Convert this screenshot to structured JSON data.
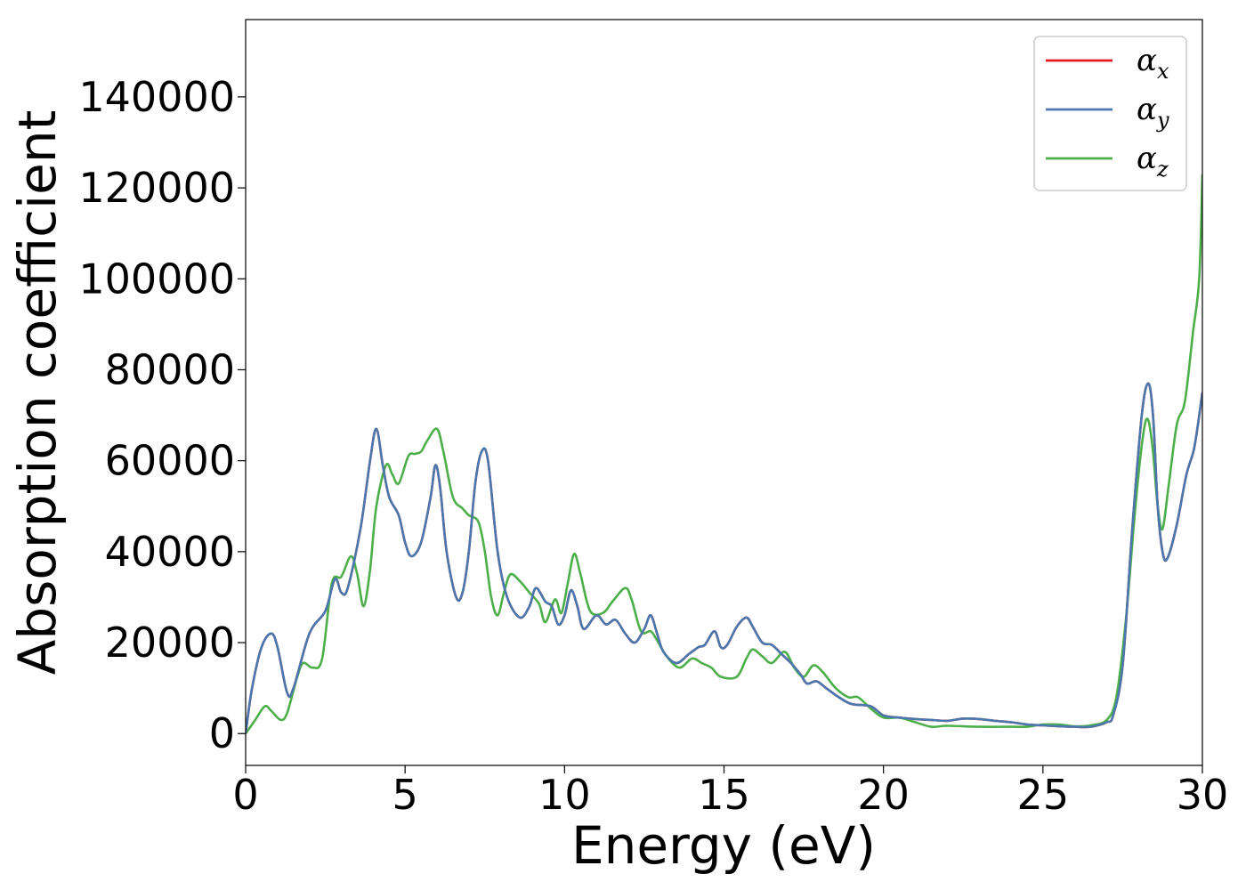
{
  "chart_data": {
    "type": "line",
    "xlabel": "Energy (eV)",
    "ylabel": "Absorption coefficient",
    "xlim": [
      0,
      30
    ],
    "ylim": [
      -7000,
      157000
    ],
    "xticks": [
      0,
      5,
      10,
      15,
      20,
      25,
      30
    ],
    "yticks": [
      0,
      20000,
      40000,
      60000,
      80000,
      100000,
      120000,
      140000
    ],
    "grid": false,
    "legend_position": "top-right",
    "series": [
      {
        "name": "α_x",
        "symbol": "α",
        "subscript": "x",
        "color": "#e41a1c",
        "points": [
          [
            0,
            0
          ],
          [
            0.2,
            10000
          ],
          [
            0.5,
            19000
          ],
          [
            0.8,
            22000
          ],
          [
            1.0,
            19000
          ],
          [
            1.3,
            9000
          ],
          [
            1.5,
            10000
          ],
          [
            2.0,
            22000
          ],
          [
            2.5,
            27000
          ],
          [
            2.8,
            34000
          ],
          [
            3.0,
            31000
          ],
          [
            3.2,
            32000
          ],
          [
            3.6,
            45000
          ],
          [
            3.9,
            60000
          ],
          [
            4.1,
            67000
          ],
          [
            4.3,
            59000
          ],
          [
            4.5,
            52000
          ],
          [
            4.8,
            48000
          ],
          [
            5.0,
            42000
          ],
          [
            5.2,
            39000
          ],
          [
            5.5,
            42000
          ],
          [
            5.8,
            52000
          ],
          [
            5.95,
            59000
          ],
          [
            6.1,
            54000
          ],
          [
            6.3,
            40000
          ],
          [
            6.6,
            30000
          ],
          [
            6.8,
            31000
          ],
          [
            7.0,
            40000
          ],
          [
            7.2,
            55000
          ],
          [
            7.4,
            62000
          ],
          [
            7.6,
            60000
          ],
          [
            7.9,
            40000
          ],
          [
            8.2,
            30000
          ],
          [
            8.6,
            25500
          ],
          [
            8.9,
            28000
          ],
          [
            9.1,
            32000
          ],
          [
            9.4,
            29000
          ],
          [
            9.6,
            28000
          ],
          [
            9.8,
            24000
          ],
          [
            10.0,
            26000
          ],
          [
            10.2,
            31500
          ],
          [
            10.4,
            28000
          ],
          [
            10.6,
            23000
          ],
          [
            11.0,
            26000
          ],
          [
            11.3,
            24000
          ],
          [
            11.6,
            25000
          ],
          [
            11.9,
            22000
          ],
          [
            12.2,
            20000
          ],
          [
            12.5,
            23000
          ],
          [
            12.7,
            26000
          ],
          [
            12.9,
            22000
          ],
          [
            13.1,
            18000
          ],
          [
            13.5,
            15500
          ],
          [
            13.9,
            17500
          ],
          [
            14.2,
            19000
          ],
          [
            14.4,
            19500
          ],
          [
            14.7,
            22500
          ],
          [
            14.9,
            19000
          ],
          [
            15.1,
            19500
          ],
          [
            15.4,
            23500
          ],
          [
            15.7,
            25500
          ],
          [
            15.9,
            23500
          ],
          [
            16.2,
            20000
          ],
          [
            16.5,
            19500
          ],
          [
            16.8,
            17500
          ],
          [
            17.1,
            15500
          ],
          [
            17.4,
            13000
          ],
          [
            17.6,
            11000
          ],
          [
            17.9,
            11500
          ],
          [
            18.2,
            10000
          ],
          [
            18.6,
            8000
          ],
          [
            19.0,
            6500
          ],
          [
            19.6,
            6000
          ],
          [
            20.0,
            4000
          ],
          [
            20.5,
            3500
          ],
          [
            21.0,
            3200
          ],
          [
            21.5,
            3000
          ],
          [
            22.0,
            2800
          ],
          [
            22.5,
            3300
          ],
          [
            23.0,
            3200
          ],
          [
            23.5,
            2800
          ],
          [
            24.0,
            2500
          ],
          [
            24.5,
            2000
          ],
          [
            25.0,
            1800
          ],
          [
            25.5,
            1600
          ],
          [
            26.0,
            1500
          ],
          [
            26.5,
            1500
          ],
          [
            27.0,
            2500
          ],
          [
            27.2,
            4000
          ],
          [
            27.5,
            15000
          ],
          [
            27.8,
            45000
          ],
          [
            28.1,
            70000
          ],
          [
            28.3,
            77000
          ],
          [
            28.45,
            70000
          ],
          [
            28.6,
            50000
          ],
          [
            28.75,
            40000
          ],
          [
            28.9,
            38500
          ],
          [
            29.2,
            46000
          ],
          [
            29.5,
            57000
          ],
          [
            29.75,
            63000
          ],
          [
            30.0,
            75000
          ]
        ]
      },
      {
        "name": "α_y",
        "symbol": "α",
        "subscript": "y",
        "color": "#4a78ae",
        "points": [
          [
            0,
            0
          ],
          [
            0.2,
            10000
          ],
          [
            0.5,
            19000
          ],
          [
            0.8,
            22000
          ],
          [
            1.0,
            19000
          ],
          [
            1.3,
            9000
          ],
          [
            1.5,
            10000
          ],
          [
            2.0,
            22000
          ],
          [
            2.5,
            27000
          ],
          [
            2.8,
            34000
          ],
          [
            3.0,
            31000
          ],
          [
            3.2,
            32000
          ],
          [
            3.6,
            45000
          ],
          [
            3.9,
            60000
          ],
          [
            4.1,
            67000
          ],
          [
            4.3,
            59000
          ],
          [
            4.5,
            52000
          ],
          [
            4.8,
            48000
          ],
          [
            5.0,
            42000
          ],
          [
            5.2,
            39000
          ],
          [
            5.5,
            42000
          ],
          [
            5.8,
            52000
          ],
          [
            5.95,
            59000
          ],
          [
            6.1,
            54000
          ],
          [
            6.3,
            40000
          ],
          [
            6.6,
            30000
          ],
          [
            6.8,
            31000
          ],
          [
            7.0,
            40000
          ],
          [
            7.2,
            55000
          ],
          [
            7.4,
            62000
          ],
          [
            7.6,
            60000
          ],
          [
            7.9,
            40000
          ],
          [
            8.2,
            30000
          ],
          [
            8.6,
            25500
          ],
          [
            8.9,
            28000
          ],
          [
            9.1,
            32000
          ],
          [
            9.4,
            29000
          ],
          [
            9.6,
            28000
          ],
          [
            9.8,
            24000
          ],
          [
            10.0,
            26000
          ],
          [
            10.2,
            31500
          ],
          [
            10.4,
            28000
          ],
          [
            10.6,
            23000
          ],
          [
            11.0,
            26000
          ],
          [
            11.3,
            24000
          ],
          [
            11.6,
            25000
          ],
          [
            11.9,
            22000
          ],
          [
            12.2,
            20000
          ],
          [
            12.5,
            23000
          ],
          [
            12.7,
            26000
          ],
          [
            12.9,
            22000
          ],
          [
            13.1,
            18000
          ],
          [
            13.5,
            15500
          ],
          [
            13.9,
            17500
          ],
          [
            14.2,
            19000
          ],
          [
            14.4,
            19500
          ],
          [
            14.7,
            22500
          ],
          [
            14.9,
            19000
          ],
          [
            15.1,
            19500
          ],
          [
            15.4,
            23500
          ],
          [
            15.7,
            25500
          ],
          [
            15.9,
            23500
          ],
          [
            16.2,
            20000
          ],
          [
            16.5,
            19500
          ],
          [
            16.8,
            17500
          ],
          [
            17.1,
            15500
          ],
          [
            17.4,
            13000
          ],
          [
            17.6,
            11000
          ],
          [
            17.9,
            11500
          ],
          [
            18.2,
            10000
          ],
          [
            18.6,
            8000
          ],
          [
            19.0,
            6500
          ],
          [
            19.6,
            6000
          ],
          [
            20.0,
            4000
          ],
          [
            20.5,
            3500
          ],
          [
            21.0,
            3200
          ],
          [
            21.5,
            3000
          ],
          [
            22.0,
            2800
          ],
          [
            22.5,
            3300
          ],
          [
            23.0,
            3200
          ],
          [
            23.5,
            2800
          ],
          [
            24.0,
            2500
          ],
          [
            24.5,
            2000
          ],
          [
            25.0,
            1800
          ],
          [
            25.5,
            1600
          ],
          [
            26.0,
            1500
          ],
          [
            26.5,
            1500
          ],
          [
            27.0,
            2500
          ],
          [
            27.2,
            4000
          ],
          [
            27.5,
            15000
          ],
          [
            27.8,
            45000
          ],
          [
            28.1,
            70000
          ],
          [
            28.3,
            77000
          ],
          [
            28.45,
            70000
          ],
          [
            28.6,
            50000
          ],
          [
            28.75,
            40000
          ],
          [
            28.9,
            38500
          ],
          [
            29.2,
            46000
          ],
          [
            29.5,
            57000
          ],
          [
            29.75,
            63000
          ],
          [
            30.0,
            75000
          ]
        ]
      },
      {
        "name": "α_z",
        "symbol": "α",
        "subscript": "z",
        "color": "#4daf4a",
        "points": [
          [
            0,
            0
          ],
          [
            0.3,
            3000
          ],
          [
            0.6,
            6000
          ],
          [
            0.8,
            5000
          ],
          [
            1.1,
            3000
          ],
          [
            1.3,
            4500
          ],
          [
            1.6,
            12000
          ],
          [
            1.8,
            15500
          ],
          [
            2.1,
            14500
          ],
          [
            2.4,
            16500
          ],
          [
            2.7,
            33000
          ],
          [
            3.0,
            34500
          ],
          [
            3.3,
            39000
          ],
          [
            3.5,
            35000
          ],
          [
            3.7,
            28000
          ],
          [
            3.9,
            36000
          ],
          [
            4.1,
            50000
          ],
          [
            4.4,
            59000
          ],
          [
            4.6,
            57000
          ],
          [
            4.8,
            55000
          ],
          [
            5.1,
            61000
          ],
          [
            5.3,
            61500
          ],
          [
            5.5,
            62000
          ],
          [
            5.7,
            64500
          ],
          [
            6.0,
            67000
          ],
          [
            6.2,
            62000
          ],
          [
            6.5,
            52000
          ],
          [
            6.8,
            49500
          ],
          [
            7.0,
            48000
          ],
          [
            7.3,
            46500
          ],
          [
            7.5,
            40000
          ],
          [
            7.7,
            30000
          ],
          [
            7.9,
            26000
          ],
          [
            8.1,
            31000
          ],
          [
            8.3,
            35000
          ],
          [
            8.6,
            33500
          ],
          [
            8.9,
            31000
          ],
          [
            9.2,
            28500
          ],
          [
            9.4,
            24500
          ],
          [
            9.7,
            29500
          ],
          [
            9.9,
            26500
          ],
          [
            10.1,
            33000
          ],
          [
            10.3,
            39500
          ],
          [
            10.5,
            35000
          ],
          [
            10.8,
            27000
          ],
          [
            11.2,
            26500
          ],
          [
            11.5,
            29000
          ],
          [
            11.9,
            32000
          ],
          [
            12.1,
            29500
          ],
          [
            12.4,
            22500
          ],
          [
            12.7,
            22500
          ],
          [
            12.9,
            20500
          ],
          [
            13.2,
            17000
          ],
          [
            13.6,
            14500
          ],
          [
            14.0,
            16500
          ],
          [
            14.3,
            15500
          ],
          [
            14.6,
            14500
          ],
          [
            14.9,
            12500
          ],
          [
            15.4,
            12500
          ],
          [
            15.7,
            16500
          ],
          [
            15.9,
            18500
          ],
          [
            16.2,
            17000
          ],
          [
            16.5,
            15500
          ],
          [
            16.9,
            18000
          ],
          [
            17.2,
            14500
          ],
          [
            17.5,
            12500
          ],
          [
            17.8,
            15000
          ],
          [
            18.1,
            13500
          ],
          [
            18.5,
            10000
          ],
          [
            18.9,
            8000
          ],
          [
            19.2,
            8000
          ],
          [
            19.6,
            5500
          ],
          [
            20.0,
            3500
          ],
          [
            20.5,
            3500
          ],
          [
            21.0,
            2500
          ],
          [
            21.5,
            1500
          ],
          [
            22.0,
            1700
          ],
          [
            23.0,
            1500
          ],
          [
            24.0,
            1500
          ],
          [
            24.5,
            1500
          ],
          [
            25.0,
            2000
          ],
          [
            25.5,
            2000
          ],
          [
            26.0,
            1600
          ],
          [
            26.5,
            1800
          ],
          [
            27.0,
            3000
          ],
          [
            27.3,
            8000
          ],
          [
            27.6,
            25000
          ],
          [
            27.9,
            50000
          ],
          [
            28.15,
            66000
          ],
          [
            28.3,
            69000
          ],
          [
            28.45,
            62000
          ],
          [
            28.6,
            50000
          ],
          [
            28.75,
            45000
          ],
          [
            28.95,
            55000
          ],
          [
            29.2,
            68000
          ],
          [
            29.45,
            73000
          ],
          [
            29.7,
            88000
          ],
          [
            29.9,
            100000
          ],
          [
            30.0,
            123000
          ]
        ]
      }
    ]
  }
}
